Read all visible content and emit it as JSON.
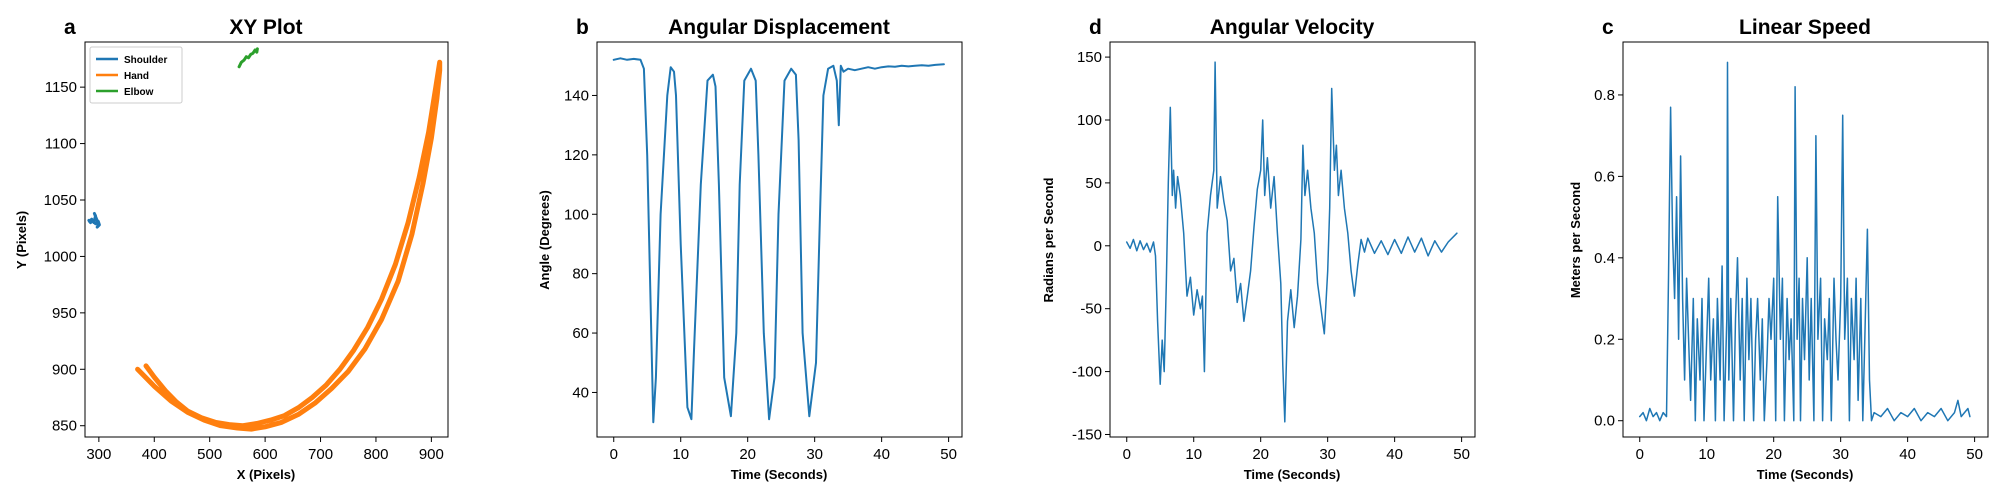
{
  "colors": {
    "blue": "#1f77b4",
    "orange": "#ff7f0e",
    "green": "#2ca02c"
  },
  "chart_data": [
    {
      "id": "a",
      "type": "line",
      "letter": "a",
      "title": "XY Plot",
      "xlabel": "X (Pixels)",
      "ylabel": "Y (Pixels)",
      "xlim": [
        275,
        930
      ],
      "ylim": [
        840,
        1190
      ],
      "xticks": [
        300,
        400,
        500,
        600,
        700,
        800,
        900
      ],
      "yticks": [
        850,
        900,
        950,
        1000,
        1050,
        1100,
        1150
      ],
      "legend": {
        "position": "top-left",
        "entries": [
          "Shoulder",
          "Hand",
          "Elbow"
        ]
      },
      "series": [
        {
          "name": "Shoulder",
          "color": "#1f77b4",
          "width": 3,
          "x": [
            283,
            287,
            291,
            294,
            292,
            296,
            300,
            297,
            301,
            299,
            294,
            290,
            285,
            282
          ],
          "y": [
            1031,
            1033,
            1030,
            1036,
            1038,
            1033,
            1029,
            1026,
            1028,
            1031,
            1029,
            1032,
            1030,
            1032
          ]
        },
        {
          "name": "Hand",
          "color": "#ff7f0e",
          "width": 5,
          "x": [
            370,
            400,
            430,
            460,
            490,
            520,
            550,
            575,
            600,
            630,
            660,
            690,
            720,
            750,
            780,
            810,
            840,
            865,
            885,
            900,
            910,
            915,
            915,
            908,
            895,
            878,
            858,
            835,
            810,
            785,
            760,
            735,
            710,
            685,
            660,
            635,
            610,
            585,
            560,
            535,
            510,
            485,
            460,
            440,
            420,
            400,
            385
          ],
          "y": [
            900,
            885,
            872,
            862,
            855,
            850,
            848,
            847,
            849,
            853,
            860,
            870,
            883,
            898,
            918,
            944,
            978,
            1020,
            1065,
            1105,
            1140,
            1165,
            1172,
            1150,
            1110,
            1070,
            1030,
            993,
            962,
            937,
            917,
            900,
            886,
            875,
            866,
            859,
            855,
            852,
            850,
            851,
            853,
            857,
            863,
            871,
            881,
            893,
            903
          ]
        },
        {
          "name": "Elbow",
          "color": "#2ca02c",
          "width": 3,
          "x": [
            553,
            557,
            562,
            566,
            570,
            574,
            578,
            582,
            585,
            586
          ],
          "y": [
            1168,
            1172,
            1174,
            1177,
            1176,
            1179,
            1180,
            1183,
            1181,
            1184
          ]
        }
      ]
    },
    {
      "id": "b",
      "type": "line",
      "letter": "b",
      "title": "Angular Displacement",
      "xlabel": "Time (Seconds)",
      "ylabel": "Angle (Degrees)",
      "xlim": [
        -2.5,
        52
      ],
      "ylim": [
        25,
        158
      ],
      "xticks": [
        0,
        10,
        20,
        30,
        40,
        50
      ],
      "yticks": [
        40,
        60,
        80,
        100,
        120,
        140
      ],
      "series": [
        {
          "name": "",
          "color": "#1f77b4",
          "width": 2,
          "x": [
            0,
            1,
            2,
            3,
            4,
            4.5,
            5,
            5.5,
            5.9,
            6.3,
            7,
            8,
            8.5,
            9,
            9.3,
            10,
            11,
            11.6,
            12,
            13,
            14,
            14.8,
            15.2,
            15.7,
            16.5,
            17.5,
            18.3,
            18.8,
            19.5,
            20.5,
            21.2,
            21.6,
            22.4,
            23.2,
            24,
            24.6,
            25.5,
            26.5,
            27.2,
            27.6,
            28.2,
            29.2,
            30.2,
            30.8,
            31.3,
            32,
            32.8,
            33.3,
            33.6,
            33.9,
            34.3,
            35,
            36,
            37,
            38,
            39,
            40,
            41,
            42,
            43,
            44,
            45,
            46,
            47,
            48,
            49.3
          ],
          "y": [
            152,
            152.5,
            152,
            152.3,
            152,
            149,
            120,
            70,
            30,
            45,
            100,
            140,
            149.5,
            148,
            140,
            90,
            35,
            31,
            55,
            110,
            145,
            147,
            143,
            110,
            45,
            32,
            60,
            110,
            145,
            149,
            145,
            120,
            60,
            31,
            45,
            100,
            145,
            149,
            147,
            125,
            60,
            32,
            50,
            100,
            140,
            149,
            150,
            145,
            130,
            150,
            148,
            149,
            148.5,
            149,
            149.5,
            149,
            149.5,
            149.8,
            149.7,
            150,
            149.8,
            150,
            150.2,
            150,
            150.3,
            150.5
          ]
        }
      ]
    },
    {
      "id": "d",
      "type": "line",
      "letter": "d",
      "title": "Angular Velocity",
      "xlabel": "Time (Seconds)",
      "ylabel": "Radians per Second",
      "xlim": [
        -2.5,
        52
      ],
      "ylim": [
        -152,
        162
      ],
      "xticks": [
        0,
        10,
        20,
        30,
        40,
        50
      ],
      "yticks": [
        -150,
        -100,
        -50,
        0,
        50,
        100,
        150
      ],
      "series": [
        {
          "name": "",
          "color": "#1f77b4",
          "width": 1.5,
          "x": [
            0,
            0.5,
            1,
            1.5,
            2,
            2.5,
            3,
            3.5,
            4,
            4.3,
            4.6,
            5,
            5.3,
            5.6,
            5.9,
            6.2,
            6.5,
            6.8,
            7,
            7.3,
            7.6,
            8,
            8.5,
            9,
            9.5,
            10,
            10.5,
            11,
            11.3,
            11.6,
            12,
            12.5,
            13,
            13.2,
            13.5,
            14,
            14.5,
            15,
            15.5,
            16,
            16.5,
            17,
            17.5,
            18,
            18.5,
            19,
            19.5,
            20,
            20.3,
            20.6,
            21,
            21.5,
            22,
            22.5,
            23,
            23.3,
            23.6,
            24,
            24.5,
            25,
            25.5,
            26,
            26.3,
            26.6,
            27,
            27.5,
            28,
            28.5,
            29,
            29.5,
            30,
            30.3,
            30.6,
            31,
            31.3,
            31.6,
            32,
            32.5,
            33,
            33.5,
            34,
            34.5,
            35,
            35.5,
            36,
            37,
            38,
            39,
            40,
            41,
            42,
            43,
            44,
            45,
            46,
            47,
            48,
            49.3
          ],
          "y": [
            3,
            -2,
            5,
            -4,
            4,
            -3,
            2,
            -5,
            3,
            -8,
            -60,
            -110,
            -75,
            -100,
            -30,
            50,
            110,
            40,
            60,
            30,
            55,
            40,
            10,
            -40,
            -25,
            -55,
            -35,
            -50,
            -40,
            -100,
            10,
            40,
            60,
            146,
            30,
            55,
            35,
            20,
            -20,
            -10,
            -45,
            -30,
            -60,
            -40,
            -20,
            15,
            45,
            60,
            100,
            40,
            70,
            30,
            55,
            10,
            -30,
            -95,
            -140,
            -60,
            -35,
            -65,
            -40,
            5,
            80,
            40,
            60,
            30,
            10,
            -30,
            -50,
            -70,
            -20,
            30,
            125,
            60,
            80,
            40,
            60,
            30,
            10,
            -20,
            -40,
            -15,
            5,
            -5,
            6,
            -6,
            4,
            -7,
            5,
            -6,
            7,
            -5,
            6,
            -8,
            4,
            -5,
            3,
            10
          ]
        }
      ]
    },
    {
      "id": "c",
      "type": "line",
      "letter": "c",
      "title": "Linear Speed",
      "xlabel": "Time (Seconds)",
      "ylabel": "Meters per Second",
      "xlim": [
        -2.5,
        52
      ],
      "ylim": [
        -0.04,
        0.93
      ],
      "xticks": [
        0,
        10,
        20,
        30,
        40,
        50
      ],
      "yticks": [
        0.0,
        0.2,
        0.4,
        0.6,
        0.8
      ],
      "series": [
        {
          "name": "",
          "color": "#1f77b4",
          "width": 1.5,
          "x": [
            0,
            0.5,
            1,
            1.5,
            2,
            2.5,
            3,
            3.5,
            4,
            4.3,
            4.6,
            4.9,
            5.2,
            5.5,
            5.8,
            6.1,
            6.4,
            6.7,
            7,
            7.3,
            7.6,
            8,
            8.3,
            8.6,
            9,
            9.3,
            9.6,
            10,
            10.3,
            10.6,
            11,
            11.3,
            11.6,
            12,
            12.3,
            12.6,
            13,
            13.1,
            13.3,
            13.6,
            14,
            14.3,
            14.6,
            15,
            15.3,
            15.6,
            16,
            16.3,
            16.6,
            17,
            17.3,
            17.6,
            18,
            18.3,
            18.6,
            19,
            19.3,
            19.6,
            20,
            20.3,
            20.6,
            21,
            21.3,
            21.6,
            22,
            22.3,
            22.6,
            23,
            23.2,
            23.5,
            23.8,
            24,
            24.3,
            24.6,
            25,
            25.3,
            25.6,
            26,
            26.3,
            26.6,
            27,
            27.3,
            27.6,
            28,
            28.3,
            28.6,
            29,
            29.3,
            29.6,
            30,
            30.3,
            30.6,
            31,
            31.3,
            31.6,
            32,
            32.3,
            32.6,
            33,
            33.3,
            33.6,
            34,
            34.3,
            34.6,
            35,
            36,
            37,
            38,
            39,
            40,
            41,
            42,
            43,
            44,
            45,
            46,
            47,
            47.5,
            48,
            49,
            49.3
          ],
          "y": [
            0.01,
            0.02,
            0.0,
            0.03,
            0.01,
            0.02,
            0.0,
            0.02,
            0.01,
            0.35,
            0.77,
            0.45,
            0.3,
            0.55,
            0.2,
            0.65,
            0.3,
            0.1,
            0.35,
            0.2,
            0.05,
            0.3,
            0.0,
            0.25,
            0.1,
            0.3,
            0.0,
            0.2,
            0.35,
            0.1,
            0.25,
            0.0,
            0.3,
            0.1,
            0.38,
            0.0,
            0.25,
            0.88,
            0.1,
            0.3,
            0.0,
            0.25,
            0.4,
            0.1,
            0.3,
            0.0,
            0.35,
            0.15,
            0.3,
            0.0,
            0.2,
            0.3,
            0.1,
            0.25,
            0.0,
            0.15,
            0.3,
            0.2,
            0.35,
            0.0,
            0.55,
            0.2,
            0.35,
            0.0,
            0.3,
            0.15,
            0.25,
            0.0,
            0.82,
            0.2,
            0.35,
            0.0,
            0.3,
            0.15,
            0.4,
            0.1,
            0.3,
            0.0,
            0.7,
            0.2,
            0.35,
            0.0,
            0.25,
            0.15,
            0.3,
            0.0,
            0.35,
            0.2,
            0.1,
            0.3,
            0.75,
            0.2,
            0.35,
            0.0,
            0.3,
            0.15,
            0.35,
            0.05,
            0.3,
            0.0,
            0.2,
            0.47,
            0.1,
            0.0,
            0.02,
            0.01,
            0.03,
            0.0,
            0.02,
            0.01,
            0.03,
            0.0,
            0.02,
            0.01,
            0.03,
            0.0,
            0.02,
            0.05,
            0.01,
            0.03,
            0.01
          ]
        }
      ]
    }
  ]
}
